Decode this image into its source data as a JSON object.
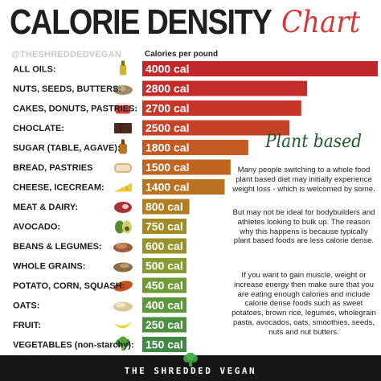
{
  "title": {
    "main": "CALORIE DENSITY",
    "script": "Chart"
  },
  "handle": "@THESHREDDEDVEGAN",
  "chart_data": {
    "type": "bar",
    "ylabel": "Calories per pound",
    "categories": [
      "ALL OILS:",
      "NUTS, SEEDS, BUTTERS:",
      "CAKES, DONUTS, PASTRIES:",
      "CHOCLATE:",
      "SUGAR (TABLE, AGAVE):",
      "BREAD, PASTRIES",
      "CHEESE, ICECREAM:",
      "MEAT & DAIRY:",
      "AVOCADO:",
      "BEANS & LEGUMES:",
      "WHOLE GRAINS:",
      "POTATO, CORN, SQUASH:",
      "OATS:",
      "FRUIT:",
      "VEGETABLES (non-starchy):"
    ],
    "values": [
      4000,
      2800,
      2700,
      2500,
      1800,
      1500,
      1400,
      800,
      750,
      600,
      500,
      450,
      400,
      250,
      150
    ],
    "value_labels": [
      "4000 cal",
      "2800 cal",
      "2700 cal",
      "2500 cal",
      "1800 cal",
      "1500 cal",
      "1400 cal",
      "800 cal",
      "750 cal",
      "600 cal",
      "500 cal",
      "450 cal",
      "400 cal",
      "250 cal",
      "150 cal"
    ],
    "colors": [
      "#c0282b",
      "#c32d29",
      "#c53628",
      "#c64226",
      "#c35a22",
      "#c0651f",
      "#bb7220",
      "#b27d21",
      "#a48a22",
      "#95932a",
      "#849b30",
      "#6f9b35",
      "#5b983b",
      "#4b9140",
      "#3f8944"
    ],
    "icons": [
      "oil-bottle-icon",
      "nuts-icon",
      "cake-icon",
      "chocolate-icon",
      "syrup-bottle-icon",
      "bread-icon",
      "cheese-icon",
      "meat-icon",
      "avocado-icon",
      "beans-icon",
      "grains-icon",
      "sweet-potato-icon",
      "oats-icon",
      "banana-icon",
      "broccoli-icon"
    ]
  },
  "panel": {
    "title": "Plant based",
    "paragraphs": [
      "Many people switching to a whole food plant based diet may initially experience weight loss - which is welcomed by some.",
      "But may not be ideal for bodybuilders and athletes looking to bulk up. The reason why this happens is because typically plant based foods are less calorie dense.",
      "If you want to gain muscle, weight or increase energy then make sure that you are eating enough calories and include calorie dense foods such as sweet potatoes, brown rice, legumes, wholegrain pasta, avocados, oats, smoothies, seeds, nuts and nut butters."
    ]
  },
  "footer": {
    "text": "THE SHREDDED VEGAN",
    "logo_icon": "broccoli-logo-icon"
  }
}
